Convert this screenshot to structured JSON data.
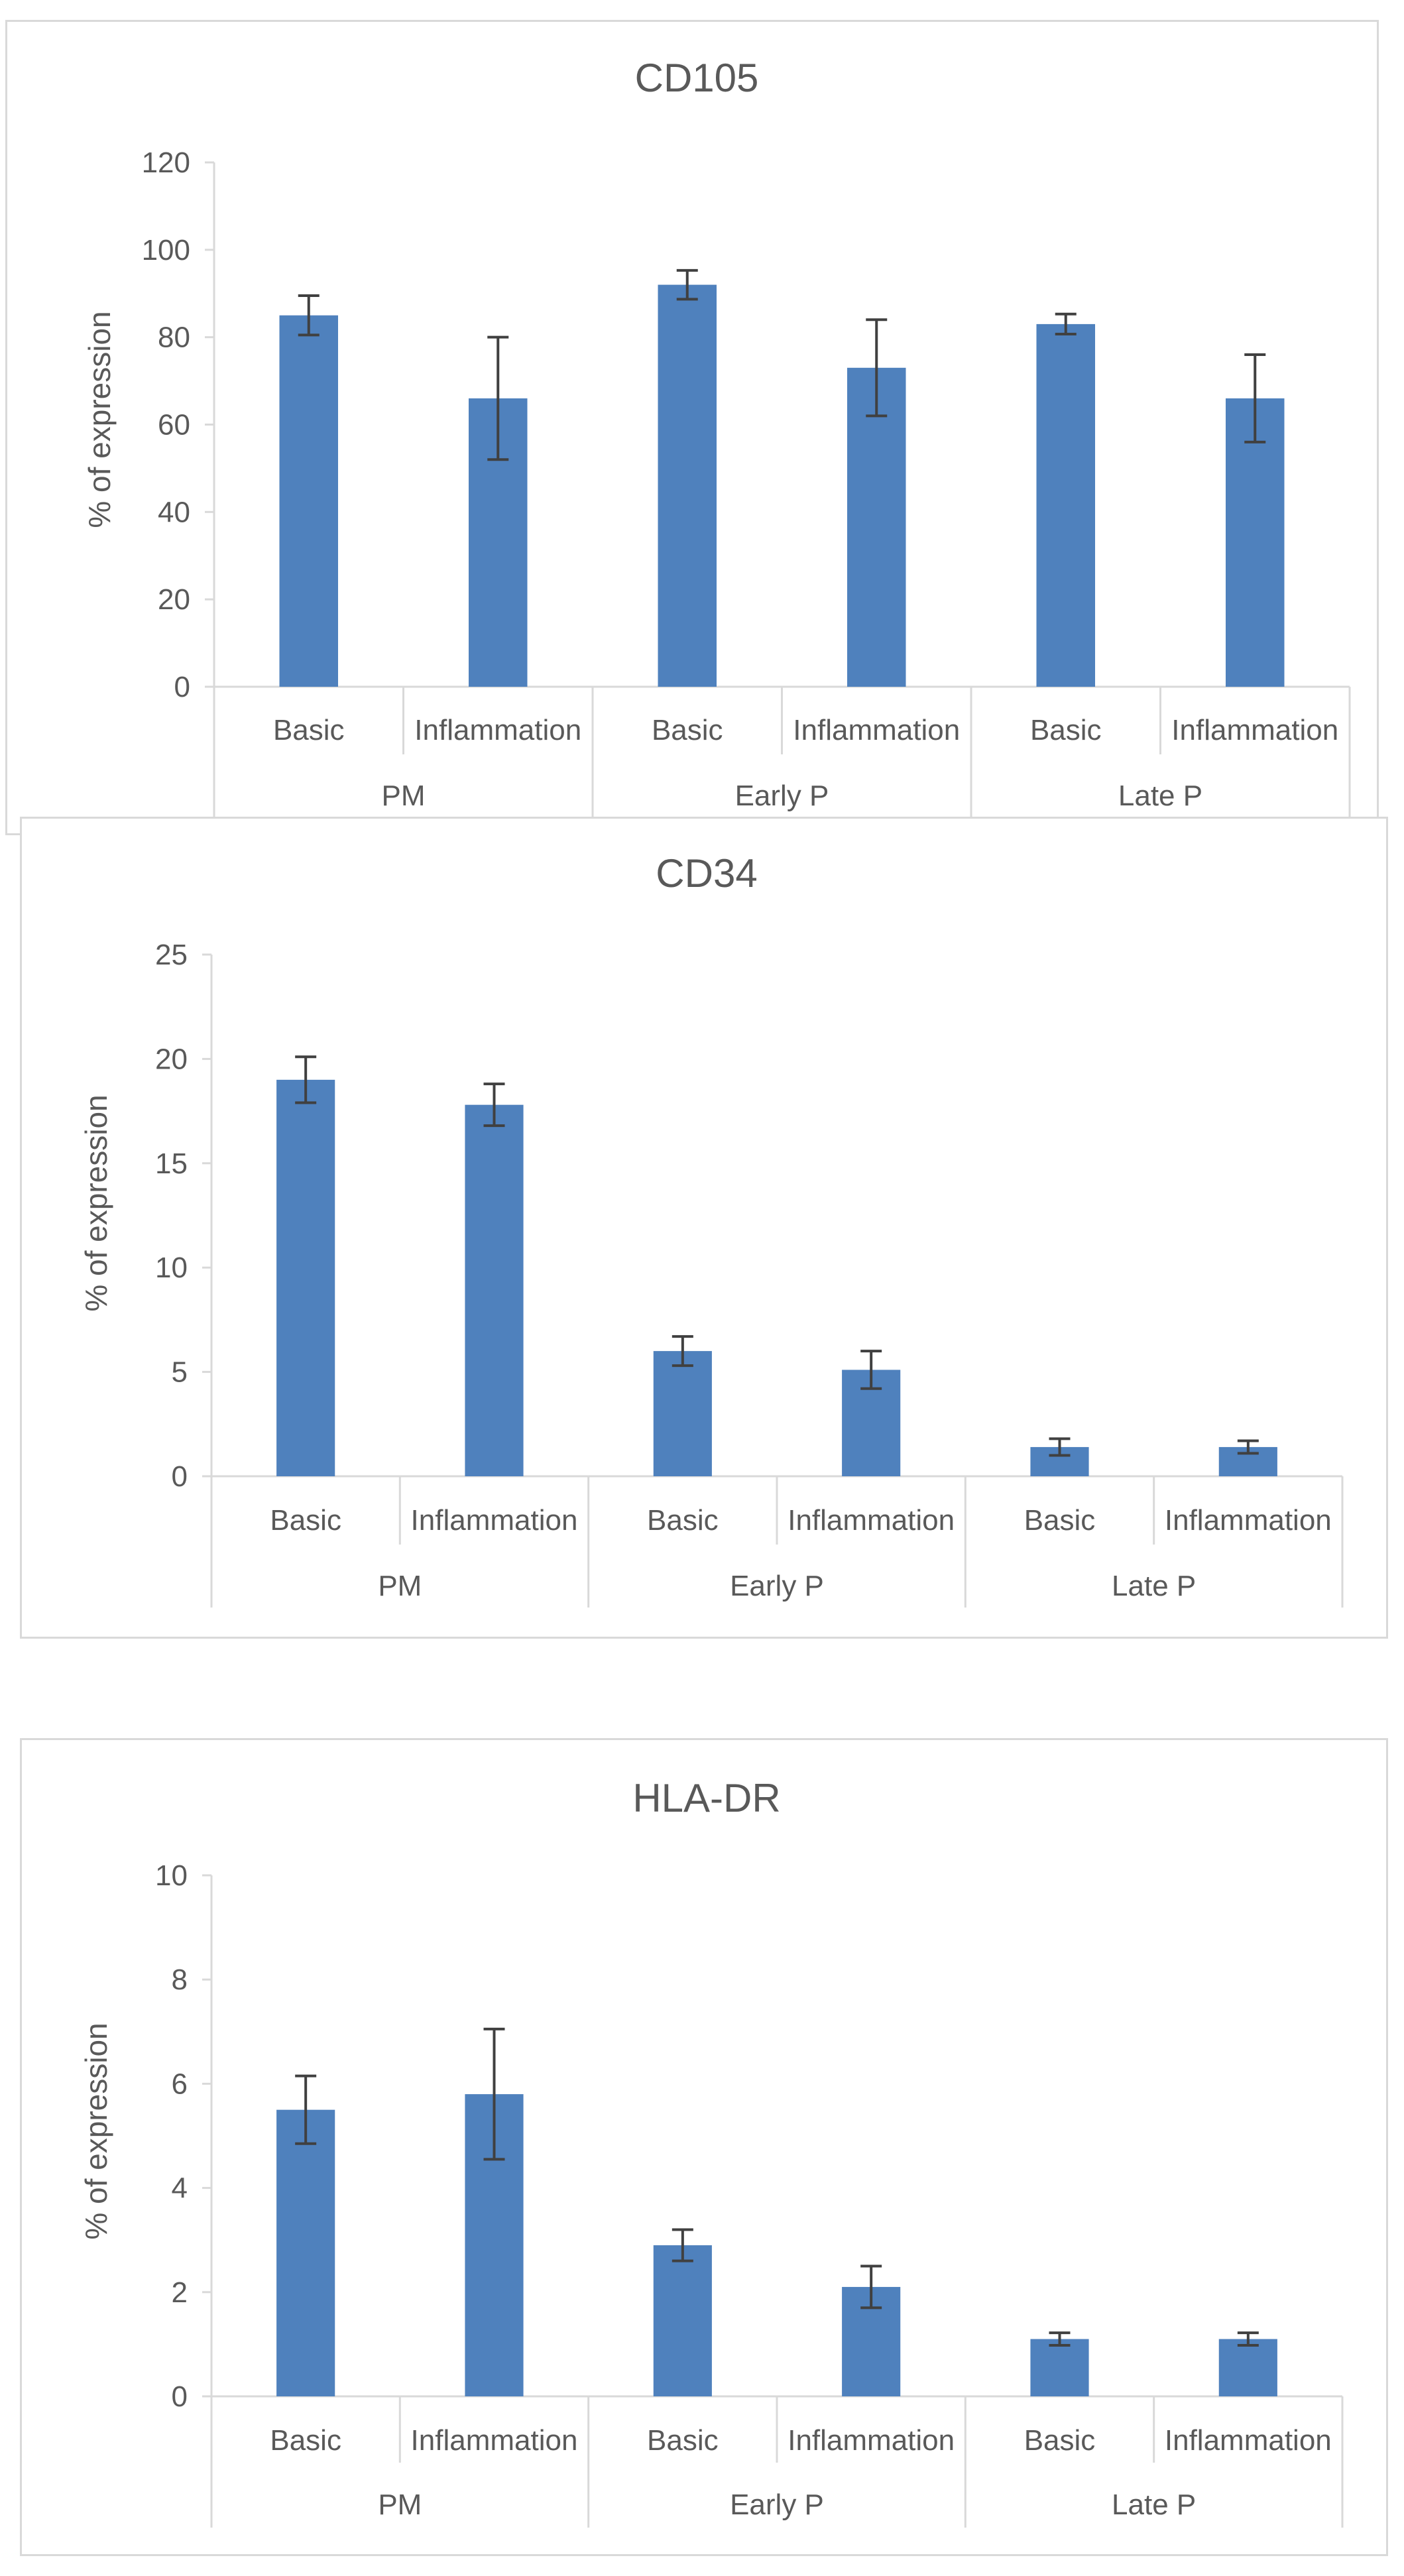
{
  "chart_data": [
    {
      "type": "bar",
      "title": "CD105",
      "ylabel": "% of expression",
      "xlabel": "",
      "ylim": [
        0,
        120
      ],
      "yticks": [
        0,
        20,
        40,
        60,
        80,
        100,
        120
      ],
      "groups": [
        "PM",
        "Early P",
        "Late P"
      ],
      "categories": [
        "Basic",
        "Inflammation",
        "Basic",
        "Inflammation",
        "Basic",
        "Inflammation"
      ],
      "values": [
        85,
        66,
        92,
        73,
        83,
        66
      ],
      "error": [
        4.5,
        14,
        3.3,
        11,
        2.3,
        10
      ],
      "color": "#4f81bd"
    },
    {
      "type": "bar",
      "title": "CD34",
      "ylabel": "% of expression",
      "xlabel": "",
      "ylim": [
        0,
        25
      ],
      "yticks": [
        0,
        5,
        10,
        15,
        20,
        25
      ],
      "groups": [
        "PM",
        "Early P",
        "Late P"
      ],
      "categories": [
        "Basic",
        "Inflammation",
        "Basic",
        "Inflammation",
        "Basic",
        "Inflammation"
      ],
      "values": [
        19,
        17.8,
        6,
        5.1,
        1.4,
        1.4
      ],
      "error": [
        1.1,
        1.0,
        0.7,
        0.9,
        0.4,
        0.3
      ],
      "color": "#4f81bd"
    },
    {
      "type": "bar",
      "title": "HLA-DR",
      "ylabel": "% of expression",
      "xlabel": "",
      "ylim": [
        0,
        10
      ],
      "yticks": [
        0,
        2,
        4,
        6,
        8,
        10
      ],
      "groups": [
        "PM",
        "Early P",
        "Late P"
      ],
      "categories": [
        "Basic",
        "Inflammation",
        "Basic",
        "Inflammation",
        "Basic",
        "Inflammation"
      ],
      "values": [
        5.5,
        5.8,
        2.9,
        2.1,
        1.1,
        1.1
      ],
      "error": [
        0.65,
        1.25,
        0.3,
        0.4,
        0.12,
        0.12
      ],
      "color": "#4f81bd"
    }
  ]
}
